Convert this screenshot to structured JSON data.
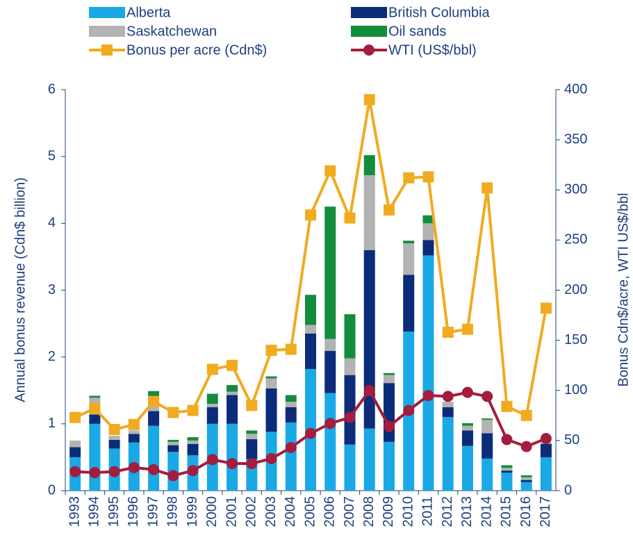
{
  "chart_data": {
    "type": "bar_line",
    "y_label": "Annual bonus revenue (Cdn$ billion)",
    "y2_label": "Bonus Cdn$/acre, WTI US$/bbl",
    "categories": [
      "1993",
      "1994",
      "1995",
      "1996",
      "1997",
      "1998",
      "1999",
      "2000",
      "2001",
      "2002",
      "2003",
      "2004",
      "2005",
      "2006",
      "2007",
      "2008",
      "2009",
      "2010",
      "2011",
      "2012",
      "2013",
      "2014",
      "2015",
      "2016",
      "2017"
    ],
    "ylim": [
      0,
      6
    ],
    "yticks": [
      0,
      1,
      2,
      3,
      4,
      5,
      6
    ],
    "y2lim": [
      0,
      400
    ],
    "y2ticks": [
      0,
      50,
      100,
      150,
      200,
      250,
      300,
      350,
      400
    ],
    "series": [
      {
        "name": "Alberta",
        "color": "#1aa9e4",
        "kind": "bar",
        "values": [
          0.5,
          1.0,
          0.63,
          0.72,
          0.97,
          0.58,
          0.53,
          1.0,
          1.0,
          0.47,
          0.88,
          1.02,
          1.82,
          1.46,
          0.69,
          0.93,
          0.73,
          2.38,
          3.52,
          1.1,
          0.67,
          0.48,
          0.27,
          0.13,
          0.5
        ]
      },
      {
        "name": "British Columbia",
        "color": "#0b2c78",
        "kind": "bar",
        "values": [
          0.15,
          0.14,
          0.13,
          0.13,
          0.22,
          0.1,
          0.17,
          0.25,
          0.43,
          0.3,
          0.65,
          0.23,
          0.53,
          0.63,
          1.04,
          2.67,
          0.88,
          0.85,
          0.23,
          0.15,
          0.23,
          0.38,
          0.03,
          0.03,
          0.2
        ]
      },
      {
        "name": "Saskatchewan",
        "color": "#b3b3b3",
        "kind": "bar",
        "values": [
          0.1,
          0.25,
          0.06,
          0.05,
          0.2,
          0.05,
          0.05,
          0.05,
          0.05,
          0.08,
          0.15,
          0.08,
          0.13,
          0.18,
          0.25,
          1.12,
          0.12,
          0.47,
          0.25,
          0.08,
          0.07,
          0.2,
          0.04,
          0.04,
          0.02
        ]
      },
      {
        "name": "Oil sands",
        "color": "#138c3d",
        "kind": "bar",
        "values": [
          0,
          0.03,
          0,
          0,
          0.1,
          0.03,
          0.05,
          0.15,
          0.1,
          0.05,
          0.03,
          0.1,
          0.45,
          1.98,
          0.66,
          0.3,
          0.03,
          0.04,
          0.12,
          0,
          0.04,
          0.02,
          0.04,
          0.03,
          0
        ]
      },
      {
        "name": "Bonus per acre (Cdn$)",
        "color": "#f0ab1f",
        "kind": "line",
        "marker": "square",
        "axis": "y2",
        "values": [
          73,
          82,
          61,
          66,
          89,
          78,
          80,
          121,
          125,
          85,
          140,
          141,
          275,
          319,
          272,
          390,
          280,
          312,
          313,
          158,
          161,
          302,
          84,
          75,
          182
        ]
      },
      {
        "name": "WTI (US$/bbl)",
        "color": "#a31d3e",
        "kind": "line",
        "marker": "circle",
        "axis": "y2",
        "values": [
          19,
          18,
          19,
          23,
          21,
          15,
          20,
          31,
          27,
          27,
          32,
          43,
          57,
          67,
          73,
          100,
          64,
          80,
          95,
          94,
          98,
          94,
          51,
          44,
          52
        ]
      }
    ]
  }
}
